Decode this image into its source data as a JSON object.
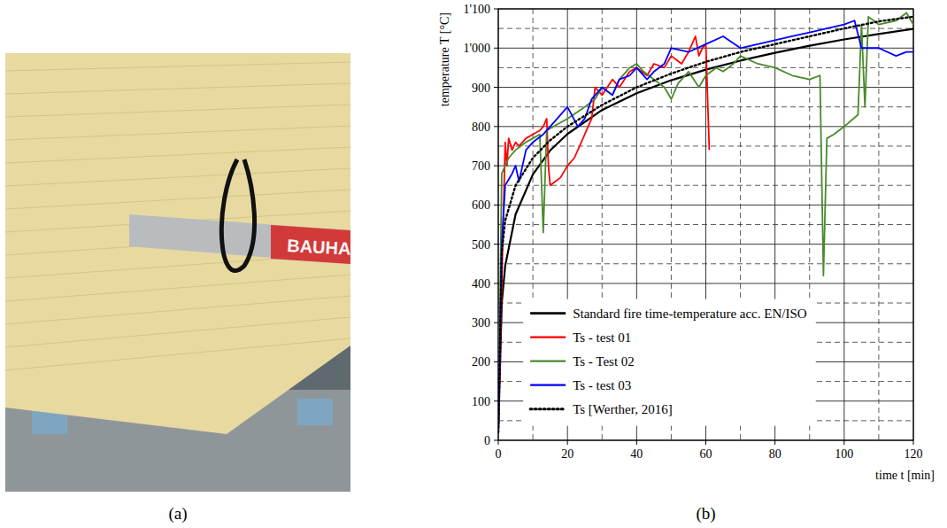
{
  "figure": {
    "panel_labels": [
      "(a)",
      "(b)"
    ],
    "photo_text": [
      "BAUHA"
    ]
  },
  "chart_data": {
    "type": "line",
    "x_label": "time t [min]",
    "y_label": "temperature T [°C]",
    "xlim": [
      0,
      120
    ],
    "xticks": [
      0,
      20,
      40,
      60,
      80,
      100,
      120
    ],
    "ylim": [
      0,
      1100
    ],
    "yticks": [
      0,
      100,
      200,
      300,
      400,
      500,
      600,
      700,
      800,
      900,
      {
        "value": 1000,
        "label": "1'000"
      },
      {
        "value": 1100,
        "label": "1'100"
      }
    ],
    "grid": true,
    "legend": "lower left",
    "series": [
      {
        "name": "Standard fire time-temperature acc. EN/ISO",
        "color": "#000000",
        "line_style": "solid",
        "x": [
          0,
          1,
          2,
          5,
          10,
          15,
          20,
          30,
          40,
          50,
          60,
          70,
          80,
          90,
          100,
          110,
          120
        ],
        "values": [
          20,
          349,
          445,
          576,
          678,
          739,
          781,
          842,
          885,
          918,
          945,
          968,
          988,
          1006,
          1022,
          1036,
          1049
        ]
      },
      {
        "name": "Ts - test 01",
        "color": "#ff0000",
        "line_style": "solid",
        "x": [
          0,
          1,
          2,
          2.5,
          3,
          4,
          5,
          6,
          8,
          10,
          12,
          13,
          14,
          14.5,
          15,
          18,
          20,
          22,
          25,
          27,
          28,
          30,
          33,
          35,
          38,
          40,
          43,
          45,
          48,
          50,
          53,
          55,
          57,
          58,
          59,
          60,
          61
        ],
        "values": [
          20,
          400,
          760,
          700,
          770,
          740,
          760,
          750,
          770,
          780,
          790,
          800,
          820,
          700,
          650,
          670,
          700,
          720,
          780,
          820,
          900,
          880,
          920,
          900,
          940,
          950,
          930,
          960,
          950,
          980,
          960,
          990,
          1030,
          980,
          1000,
          1010,
          740
        ]
      },
      {
        "name": "Ts - Test 02",
        "color": "#4a8a2a",
        "line_style": "solid",
        "x": [
          0,
          1,
          3,
          5,
          8,
          10,
          12,
          13,
          14,
          16,
          20,
          25,
          28,
          30,
          33,
          35,
          38,
          40,
          42,
          45,
          48,
          50,
          52,
          55,
          58,
          60,
          63,
          65,
          68,
          70,
          75,
          80,
          85,
          90,
          93,
          94,
          95,
          97,
          100,
          104,
          105,
          106,
          107,
          110,
          115,
          118,
          120
        ],
        "values": [
          20,
          680,
          720,
          740,
          760,
          770,
          780,
          530,
          790,
          800,
          820,
          850,
          870,
          900,
          880,
          920,
          950,
          960,
          940,
          920,
          900,
          870,
          910,
          940,
          900,
          930,
          950,
          940,
          960,
          980,
          960,
          950,
          930,
          920,
          930,
          420,
          770,
          780,
          800,
          830,
          1060,
          850,
          1080,
          1060,
          1070,
          1090,
          1060
        ]
      },
      {
        "name": "Ts - test 03",
        "color": "#0000ff",
        "line_style": "solid",
        "x": [
          0,
          1,
          2,
          4,
          5,
          6,
          8,
          10,
          13,
          15,
          18,
          20,
          23,
          25,
          27,
          30,
          33,
          35,
          38,
          40,
          43,
          45,
          48,
          50,
          55,
          60,
          65,
          70,
          75,
          80,
          85,
          90,
          95,
          100,
          103,
          105,
          110,
          115,
          118,
          120
        ],
        "values": [
          20,
          500,
          650,
          680,
          700,
          660,
          740,
          760,
          780,
          800,
          830,
          850,
          800,
          820,
          870,
          900,
          880,
          920,
          930,
          950,
          920,
          940,
          960,
          1000,
          990,
          1010,
          1030,
          1000,
          1010,
          1020,
          1030,
          1040,
          1050,
          1060,
          1070,
          1000,
          1000,
          980,
          990,
          990
        ]
      },
      {
        "name": "Ts [Werther, 2016]",
        "color": "#000000",
        "line_style": "dotted",
        "x": [
          0,
          1,
          2,
          5,
          10,
          15,
          20,
          30,
          40,
          50,
          60,
          70,
          80,
          90,
          100,
          110,
          120
        ],
        "values": [
          20,
          480,
          560,
          650,
          720,
          765,
          800,
          855,
          900,
          935,
          965,
          990,
          1010,
          1030,
          1050,
          1068,
          1080
        ]
      }
    ]
  }
}
